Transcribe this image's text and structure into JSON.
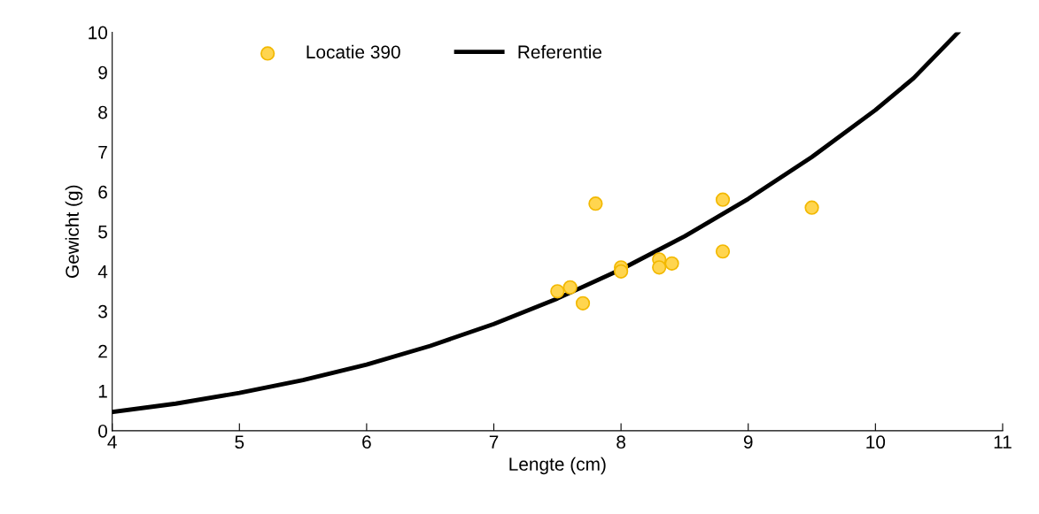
{
  "chart_data": {
    "type": "scatter",
    "xlabel": "Lengte (cm)",
    "ylabel": "Gewicht (g)",
    "xlim": [
      4,
      11
    ],
    "xticks": [
      4,
      5,
      6,
      7,
      8,
      9,
      10,
      11
    ],
    "ylim": [
      0,
      10
    ],
    "yticks": [
      0,
      1,
      2,
      3,
      4,
      5,
      6,
      7,
      8,
      9,
      10
    ],
    "grid": false,
    "legend": "top",
    "series": [
      {
        "name": "Locatie 390",
        "color": "#ffd54f",
        "marker": "circle",
        "x": [
          7.5,
          7.6,
          7.7,
          7.8,
          8.0,
          8.0,
          8.3,
          8.3,
          8.4,
          8.8,
          8.8,
          9.5
        ],
        "values": [
          3.5,
          3.6,
          3.2,
          5.7,
          4.1,
          4.0,
          4.3,
          4.1,
          4.2,
          5.8,
          4.5,
          5.6
        ]
      },
      {
        "name": "Referentie",
        "type": "line",
        "color": "#000000",
        "marker": "none",
        "line_style": "solid",
        "x": [
          4,
          4.5,
          5,
          5.5,
          6,
          6.5,
          7,
          7.5,
          8,
          8.5,
          9,
          9.5,
          10,
          10.3,
          10.65
        ],
        "values": [
          0.47,
          0.68,
          0.95,
          1.27,
          1.66,
          2.13,
          2.68,
          3.32,
          4.05,
          4.88,
          5.82,
          6.87,
          8.05,
          8.85,
          10.0
        ]
      }
    ]
  }
}
